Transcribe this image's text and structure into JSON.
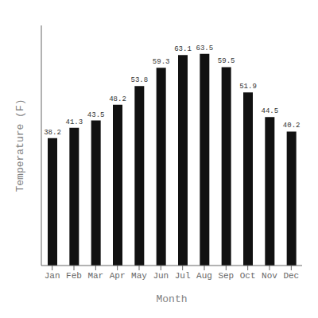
{
  "chart_data": {
    "type": "bar",
    "categories": [
      "Jan",
      "Feb",
      "Mar",
      "Apr",
      "May",
      "Jun",
      "Jul",
      "Aug",
      "Sep",
      "Oct",
      "Nov",
      "Dec"
    ],
    "values": [
      38.2,
      41.3,
      43.5,
      48.2,
      53.8,
      59.3,
      63.1,
      63.5,
      59.5,
      51.9,
      44.5,
      40.2
    ],
    "color": "#111111",
    "xlabel": "Month",
    "ylabel": "Temperature (F)",
    "ylim": [
      0,
      72
    ],
    "data_labels": true,
    "tick_labels": "x"
  }
}
